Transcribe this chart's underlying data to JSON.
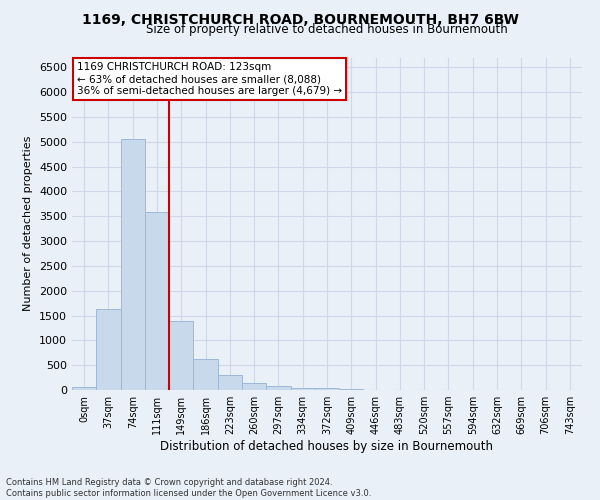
{
  "title_line1": "1169, CHRISTCHURCH ROAD, BOURNEMOUTH, BH7 6BW",
  "title_line2": "Size of property relative to detached houses in Bournemouth",
  "xlabel": "Distribution of detached houses by size in Bournemouth",
  "ylabel": "Number of detached properties",
  "footnote": "Contains HM Land Registry data © Crown copyright and database right 2024.\nContains public sector information licensed under the Open Government Licence v3.0.",
  "bar_labels": [
    "0sqm",
    "37sqm",
    "74sqm",
    "111sqm",
    "149sqm",
    "186sqm",
    "223sqm",
    "260sqm",
    "297sqm",
    "334sqm",
    "372sqm",
    "409sqm",
    "446sqm",
    "483sqm",
    "520sqm",
    "557sqm",
    "594sqm",
    "632sqm",
    "669sqm",
    "706sqm",
    "743sqm"
  ],
  "bar_values": [
    70,
    1640,
    5060,
    3580,
    1400,
    620,
    300,
    140,
    80,
    50,
    40,
    30,
    0,
    0,
    0,
    0,
    0,
    0,
    0,
    0,
    0
  ],
  "bar_color": "#c9d9ec",
  "bar_edgecolor": "#a0b8d8",
  "grid_color": "#d0d8e8",
  "background_color": "#eaf0f8",
  "vline_color": "#cc0000",
  "annotation_text": "1169 CHRISTCHURCH ROAD: 123sqm\n← 63% of detached houses are smaller (8,088)\n36% of semi-detached houses are larger (4,679) →",
  "annotation_box_color": "#ffffff",
  "annotation_box_edgecolor": "#cc0000",
  "ylim": [
    0,
    6700
  ],
  "yticks": [
    0,
    500,
    1000,
    1500,
    2000,
    2500,
    3000,
    3500,
    4000,
    4500,
    5000,
    5500,
    6000,
    6500
  ]
}
